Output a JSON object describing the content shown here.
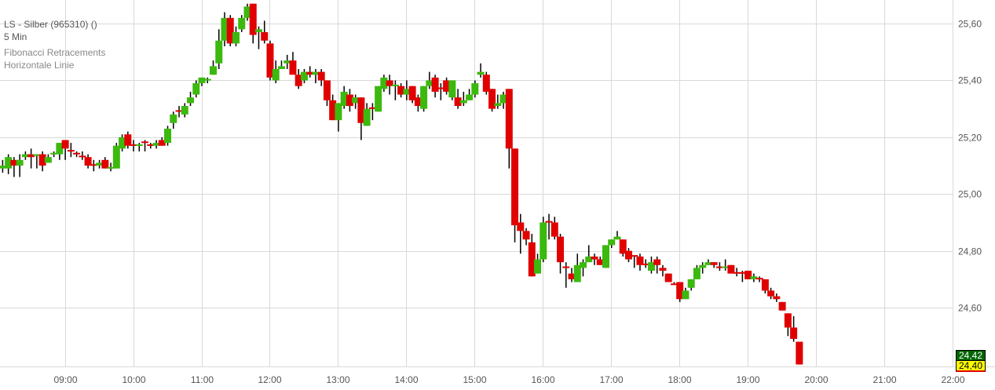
{
  "header": {
    "title": "LS - Silber (965310) ()",
    "interval": "5 Min",
    "indicators": [
      "Fibonacci Retracements",
      "Horizontale Linie"
    ]
  },
  "current_prices": {
    "last": "24,42",
    "second": "24,40",
    "last_bg": "#006400",
    "second_bg": "#ffff00",
    "second_border": "#e00000"
  },
  "colors": {
    "up": "#3cb90e",
    "down": "#e00000",
    "wick": "#000000",
    "grid": "#d9d9d9"
  },
  "chart_data": {
    "type": "candlestick",
    "title": "LS - Silber (965310) ()",
    "interval": "5 Min",
    "x_ticks": [
      "09:00",
      "10:00",
      "11:00",
      "12:00",
      "13:00",
      "14:00",
      "15:00",
      "16:00",
      "17:00",
      "18:00",
      "19:00",
      "20:00",
      "21:00",
      "22:00"
    ],
    "y_ticks": [
      "24,60",
      "24,80",
      "25,00",
      "25,20",
      "25,40",
      "25,60"
    ],
    "y_tick_values": [
      24.6,
      24.8,
      25.0,
      25.2,
      25.4,
      25.6
    ],
    "xlim": [
      "08:03",
      "22:00"
    ],
    "ylim": [
      24.393,
      25.683
    ],
    "grid": true,
    "y_axis_side": "right",
    "candles_format": [
      "time",
      "open",
      "high",
      "low",
      "close"
    ],
    "candles": [
      [
        "08:05",
        25.09,
        25.12,
        25.075,
        25.1
      ],
      [
        "08:10",
        25.09,
        25.14,
        25.07,
        25.13
      ],
      [
        "08:15",
        25.12,
        25.13,
        25.06,
        25.1
      ],
      [
        "08:20",
        25.1,
        25.14,
        25.06,
        25.12
      ],
      [
        "08:25",
        25.13,
        25.15,
        25.12,
        25.14
      ],
      [
        "08:30",
        25.14,
        25.16,
        25.09,
        25.13
      ],
      [
        "08:35",
        25.14,
        25.14,
        25.09,
        25.14
      ],
      [
        "08:40",
        25.14,
        25.15,
        25.08,
        25.1
      ],
      [
        "08:45",
        25.11,
        25.14,
        25.11,
        25.13
      ],
      [
        "08:50",
        25.14,
        25.15,
        25.13,
        25.145
      ],
      [
        "08:55",
        25.14,
        25.18,
        25.12,
        25.18
      ],
      [
        "09:00",
        25.19,
        25.19,
        25.12,
        25.16
      ],
      [
        "09:05",
        25.155,
        25.18,
        25.13,
        25.15
      ],
      [
        "09:10",
        25.145,
        25.15,
        25.13,
        25.14
      ],
      [
        "09:15",
        25.135,
        25.15,
        25.12,
        25.13
      ],
      [
        "09:20",
        25.13,
        25.14,
        25.09,
        25.1
      ],
      [
        "09:25",
        25.105,
        25.12,
        25.08,
        25.1
      ],
      [
        "09:30",
        25.1,
        25.12,
        25.09,
        25.11
      ],
      [
        "09:35",
        25.12,
        25.13,
        25.09,
        25.09
      ],
      [
        "09:40",
        25.09,
        25.11,
        25.08,
        25.095
      ],
      [
        "09:45",
        25.09,
        25.18,
        25.09,
        25.17
      ],
      [
        "09:50",
        25.16,
        25.21,
        25.15,
        25.2
      ],
      [
        "09:55",
        25.21,
        25.22,
        25.16,
        25.17
      ],
      [
        "10:00",
        25.175,
        25.19,
        25.15,
        25.17
      ],
      [
        "10:05",
        25.17,
        25.18,
        25.15,
        25.175
      ],
      [
        "10:10",
        25.185,
        25.19,
        25.15,
        25.18
      ],
      [
        "10:15",
        25.175,
        25.18,
        25.16,
        25.17
      ],
      [
        "10:20",
        25.17,
        25.19,
        25.16,
        25.18
      ],
      [
        "10:25",
        25.19,
        25.2,
        25.17,
        25.17
      ],
      [
        "10:30",
        25.18,
        25.24,
        25.17,
        25.23
      ],
      [
        "10:35",
        25.25,
        25.29,
        25.23,
        25.28
      ],
      [
        "10:40",
        25.295,
        25.31,
        25.27,
        25.29
      ],
      [
        "10:45",
        25.28,
        25.32,
        25.27,
        25.31
      ],
      [
        "10:50",
        25.32,
        25.36,
        25.31,
        25.34
      ],
      [
        "10:55",
        25.35,
        25.4,
        25.34,
        25.39
      ],
      [
        "11:00",
        25.39,
        25.41,
        25.38,
        25.41
      ],
      [
        "11:05",
        25.4,
        25.41,
        25.39,
        25.405
      ],
      [
        "11:10",
        25.42,
        25.47,
        25.42,
        25.45
      ],
      [
        "11:15",
        25.46,
        25.58,
        25.44,
        25.54
      ],
      [
        "11:20",
        25.54,
        25.64,
        25.52,
        25.62
      ],
      [
        "11:25",
        25.62,
        25.63,
        25.52,
        25.53
      ],
      [
        "11:30",
        25.53,
        25.59,
        25.52,
        25.57
      ],
      [
        "11:35",
        25.58,
        25.63,
        25.57,
        25.62
      ],
      [
        "11:40",
        25.62,
        25.67,
        25.61,
        25.66
      ],
      [
        "11:45",
        25.67,
        25.67,
        25.53,
        25.56
      ],
      [
        "11:50",
        25.57,
        25.59,
        25.51,
        25.58
      ],
      [
        "11:55",
        25.57,
        25.61,
        25.53,
        25.54
      ],
      [
        "12:00",
        25.53,
        25.54,
        25.4,
        25.41
      ],
      [
        "12:05",
        25.4,
        25.47,
        25.39,
        25.44
      ],
      [
        "12:10",
        25.44,
        25.47,
        25.44,
        25.45
      ],
      [
        "12:15",
        25.46,
        25.49,
        25.44,
        25.47
      ],
      [
        "12:20",
        25.47,
        25.5,
        25.42,
        25.42
      ],
      [
        "12:25",
        25.42,
        25.44,
        25.37,
        25.38
      ],
      [
        "12:30",
        25.4,
        25.44,
        25.39,
        25.43
      ],
      [
        "12:35",
        25.43,
        25.45,
        25.41,
        25.42
      ],
      [
        "12:40",
        25.42,
        25.44,
        25.39,
        25.43
      ],
      [
        "12:45",
        25.43,
        25.44,
        25.38,
        25.4
      ],
      [
        "12:50",
        25.4,
        25.4,
        25.31,
        25.33
      ],
      [
        "12:55",
        25.33,
        25.35,
        25.26,
        25.26
      ],
      [
        "13:00",
        25.26,
        25.32,
        25.22,
        25.32
      ],
      [
        "13:05",
        25.31,
        25.38,
        25.3,
        25.36
      ],
      [
        "13:10",
        25.35,
        25.37,
        25.29,
        25.31
      ],
      [
        "13:15",
        25.32,
        25.35,
        25.3,
        25.34
      ],
      [
        "13:20",
        25.34,
        25.34,
        25.19,
        25.25
      ],
      [
        "13:25",
        25.24,
        25.32,
        25.24,
        25.3
      ],
      [
        "13:30",
        25.305,
        25.32,
        25.26,
        25.3
      ],
      [
        "13:35",
        25.29,
        25.38,
        25.29,
        25.38
      ],
      [
        "13:40",
        25.37,
        25.42,
        25.36,
        25.41
      ],
      [
        "13:45",
        25.4,
        25.42,
        25.35,
        25.38
      ],
      [
        "13:50",
        25.38,
        25.4,
        25.33,
        25.385
      ],
      [
        "13:55",
        25.38,
        25.39,
        25.34,
        25.35
      ],
      [
        "14:00",
        25.35,
        25.4,
        25.33,
        25.37
      ],
      [
        "14:05",
        25.38,
        25.38,
        25.32,
        25.33
      ],
      [
        "14:10",
        25.34,
        25.35,
        25.29,
        25.31
      ],
      [
        "14:15",
        25.3,
        25.38,
        25.29,
        25.38
      ],
      [
        "14:20",
        25.38,
        25.43,
        25.37,
        25.4
      ],
      [
        "14:25",
        25.41,
        25.42,
        25.34,
        25.36
      ],
      [
        "14:30",
        25.375,
        25.39,
        25.33,
        25.37
      ],
      [
        "14:35",
        25.4,
        25.41,
        25.35,
        25.36
      ],
      [
        "14:40",
        25.34,
        25.4,
        25.33,
        25.4
      ],
      [
        "14:45",
        25.34,
        25.37,
        25.3,
        25.31
      ],
      [
        "14:50",
        25.32,
        25.36,
        25.31,
        25.33
      ],
      [
        "14:55",
        25.33,
        25.37,
        25.33,
        25.35
      ],
      [
        "15:00",
        25.35,
        25.4,
        25.34,
        25.39
      ],
      [
        "15:05",
        25.42,
        25.46,
        25.41,
        25.43
      ],
      [
        "15:10",
        25.42,
        25.43,
        25.35,
        25.36
      ],
      [
        "15:15",
        25.37,
        25.37,
        25.29,
        25.3
      ],
      [
        "15:20",
        25.31,
        25.35,
        25.3,
        25.32
      ],
      [
        "15:25",
        25.32,
        25.36,
        25.3,
        25.35
      ],
      [
        "15:30",
        25.37,
        25.37,
        25.09,
        25.16
      ],
      [
        "15:35",
        25.16,
        25.16,
        24.83,
        24.89
      ],
      [
        "15:40",
        24.9,
        24.93,
        24.79,
        24.87
      ],
      [
        "15:45",
        24.87,
        24.88,
        24.82,
        24.84
      ],
      [
        "15:50",
        24.83,
        24.86,
        24.71,
        24.71
      ],
      [
        "15:55",
        24.72,
        24.79,
        24.72,
        24.77
      ],
      [
        "16:00",
        24.77,
        24.92,
        24.76,
        24.9
      ],
      [
        "16:05",
        24.905,
        24.93,
        24.84,
        24.9
      ],
      [
        "16:10",
        24.9,
        24.92,
        24.84,
        24.85
      ],
      [
        "16:15",
        24.85,
        24.86,
        24.72,
        24.76
      ],
      [
        "16:20",
        24.745,
        24.76,
        24.67,
        24.74
      ],
      [
        "16:25",
        24.72,
        24.74,
        24.69,
        24.7
      ],
      [
        "16:30",
        24.69,
        24.79,
        24.69,
        24.75
      ],
      [
        "16:35",
        24.74,
        24.77,
        24.71,
        24.76
      ],
      [
        "16:40",
        24.76,
        24.82,
        24.76,
        24.78
      ],
      [
        "16:45",
        24.78,
        24.79,
        24.75,
        24.77
      ],
      [
        "16:50",
        24.77,
        24.78,
        24.75,
        24.75
      ],
      [
        "16:55",
        24.74,
        24.82,
        24.74,
        24.82
      ],
      [
        "17:00",
        24.82,
        24.84,
        24.81,
        24.84
      ],
      [
        "17:05",
        24.84,
        24.87,
        24.84,
        24.85
      ],
      [
        "17:10",
        24.84,
        24.84,
        24.78,
        24.79
      ],
      [
        "17:15",
        24.8,
        24.81,
        24.76,
        24.77
      ],
      [
        "17:20",
        24.785,
        24.78,
        24.74,
        24.78
      ],
      [
        "17:25",
        24.78,
        24.79,
        24.73,
        24.75
      ],
      [
        "17:30",
        24.755,
        24.77,
        24.74,
        24.75
      ],
      [
        "17:35",
        24.73,
        24.78,
        24.72,
        24.76
      ],
      [
        "17:40",
        24.77,
        24.78,
        24.72,
        24.75
      ],
      [
        "17:45",
        24.74,
        24.75,
        24.71,
        24.73
      ],
      [
        "17:50",
        24.72,
        24.72,
        24.69,
        24.69
      ],
      [
        "17:55",
        24.685,
        24.69,
        24.68,
        24.68
      ],
      [
        "18:00",
        24.69,
        24.69,
        24.62,
        24.63
      ],
      [
        "18:05",
        24.63,
        24.67,
        24.63,
        24.66
      ],
      [
        "18:10",
        24.67,
        24.7,
        24.66,
        24.7
      ],
      [
        "18:15",
        24.7,
        24.75,
        24.7,
        24.74
      ],
      [
        "18:20",
        24.74,
        24.76,
        24.72,
        24.75
      ],
      [
        "18:25",
        24.75,
        24.77,
        24.75,
        24.76
      ],
      [
        "18:30",
        24.76,
        24.76,
        24.74,
        24.75
      ],
      [
        "18:35",
        24.745,
        24.76,
        24.73,
        24.74
      ],
      [
        "18:40",
        24.74,
        24.77,
        24.73,
        24.745
      ],
      [
        "18:45",
        24.75,
        24.75,
        24.72,
        24.72
      ],
      [
        "18:50",
        24.725,
        24.74,
        24.71,
        24.72
      ],
      [
        "18:55",
        24.725,
        24.73,
        24.69,
        24.72
      ],
      [
        "19:00",
        24.73,
        24.73,
        24.7,
        24.7
      ],
      [
        "19:05",
        24.7,
        24.72,
        24.69,
        24.71
      ],
      [
        "19:10",
        24.705,
        24.71,
        24.69,
        24.7
      ],
      [
        "19:15",
        24.7,
        24.7,
        24.65,
        24.66
      ],
      [
        "19:20",
        24.66,
        24.67,
        24.63,
        24.64
      ],
      [
        "19:25",
        24.64,
        24.65,
        24.62,
        24.63
      ],
      [
        "19:30",
        24.62,
        24.62,
        24.59,
        24.59
      ],
      [
        "19:35",
        24.58,
        24.58,
        24.5,
        24.53
      ],
      [
        "19:40",
        24.53,
        24.57,
        24.48,
        24.49
      ],
      [
        "19:45",
        24.48,
        24.48,
        24.4,
        24.4
      ]
    ]
  }
}
